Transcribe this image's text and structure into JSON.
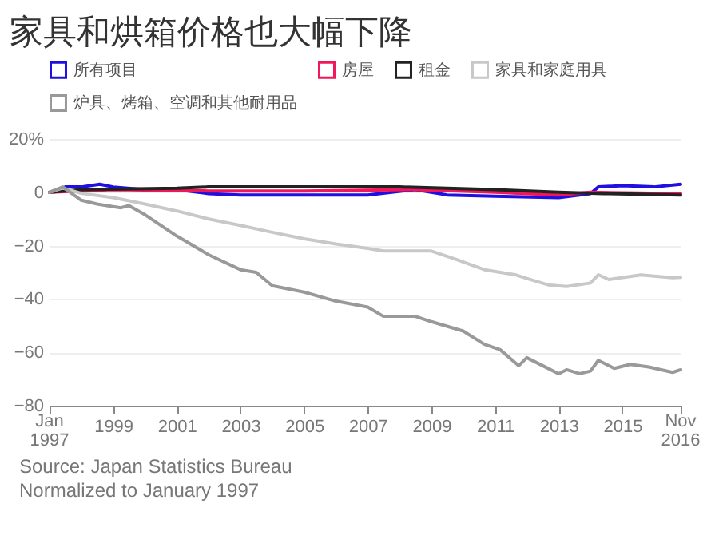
{
  "chart_data": {
    "type": "line",
    "title": "家具和烘箱价格也大幅下降",
    "annotations": [
      "Source: Japan Statistics Bureau",
      "Normalized to January 1997"
    ],
    "xlim": [
      "1997-01",
      "2016-11"
    ],
    "xticks": [
      {
        "value": "1997-01",
        "label": "Jan 1997"
      },
      "1999",
      "2001",
      "2003",
      "2005",
      "2007",
      "2009",
      "2011",
      "2013",
      "2015",
      {
        "value": "2016-11",
        "label": "Nov 2016"
      }
    ],
    "ylim": [
      -80,
      20
    ],
    "yticks": [
      {
        "value": 20,
        "label": "20%"
      },
      0,
      -20,
      -40,
      -60,
      -80
    ],
    "grid": "y",
    "legend": "top",
    "line_style": "solid",
    "marker": "none",
    "series": [
      {
        "name": "所有项目",
        "color": "#1f0fe0",
        "x": [
          "1997-01",
          "1997-07",
          "1998-01",
          "1998-08",
          "1999-01",
          "2000-01",
          "2001-01",
          "2002-01",
          "2003-01",
          "2005-01",
          "2007-01",
          "2008-07",
          "2009-07",
          "2011-01",
          "2013-01",
          "2014-01",
          "2014-04",
          "2015-01",
          "2016-01",
          "2016-11"
        ],
        "values": [
          0,
          2,
          2,
          3,
          2,
          1,
          1,
          -0.5,
          -1,
          -1,
          -1,
          1,
          -1,
          -1.5,
          -2,
          -0.5,
          2,
          2.5,
          2,
          3
        ]
      },
      {
        "name": "房屋",
        "color": "#f0185a",
        "x": [
          "1997-01",
          "1999-01",
          "2002-01",
          "2005-01",
          "2008-07",
          "2011-01",
          "2013-01",
          "2014-01",
          "2016-11"
        ],
        "values": [
          0,
          1,
          0.5,
          0.5,
          1,
          0,
          -1,
          0,
          -0.5
        ]
      },
      {
        "name": "租金",
        "color": "#222222",
        "x": [
          "1997-01",
          "1998-01",
          "2001-01",
          "2002-01",
          "2008-01",
          "2011-01",
          "2013-01",
          "2014-06",
          "2016-11"
        ],
        "values": [
          0,
          1,
          1.5,
          2,
          2,
          1,
          0,
          -0.5,
          -1
        ]
      },
      {
        "name": "家具和家庭用具",
        "color": "#c8c8c8",
        "x": [
          "1997-01",
          "1997-06",
          "1998-01",
          "1999-01",
          "2000-01",
          "2001-01",
          "2002-01",
          "2003-01",
          "2004-01",
          "2005-01",
          "2006-01",
          "2007-01",
          "2007-07",
          "2009-01",
          "2009-10",
          "2010-09",
          "2011-09",
          "2012-01",
          "2012-09",
          "2013-04",
          "2014-01",
          "2014-04",
          "2014-08",
          "2015-08",
          "2016-08",
          "2016-11"
        ],
        "values": [
          0,
          1.6,
          -0.4,
          -2,
          -4.4,
          -7,
          -10,
          -12.4,
          -15,
          -17.4,
          -19.4,
          -21,
          -22,
          -22,
          -25,
          -29,
          -31,
          -32.3,
          -34.7,
          -35.3,
          -34,
          -30.9,
          -32.7,
          -31,
          -32,
          -31.9
        ]
      },
      {
        "name": "炉具、烤箱、空调和其他耐用品",
        "color": "#999999",
        "x": [
          "1997-01",
          "1997-06",
          "1998-01",
          "1998-07",
          "1999-01",
          "1999-04",
          "1999-07",
          "2000-01",
          "2001-01",
          "2002-01",
          "2003-01",
          "2003-07",
          "2004-01",
          "2005-01",
          "2006-01",
          "2007-01",
          "2007-07",
          "2008-07",
          "2009-01",
          "2010-01",
          "2010-09",
          "2011-03",
          "2011-10",
          "2012-01",
          "2012-07",
          "2013-01",
          "2013-04",
          "2013-09",
          "2014-01",
          "2014-04",
          "2014-10",
          "2015-04",
          "2015-11",
          "2016-08",
          "2016-11"
        ],
        "values": [
          0,
          2,
          -3,
          -4.4,
          -5.4,
          -5.8,
          -5,
          -8.4,
          -16.4,
          -23.4,
          -29,
          -30,
          -35,
          -37.4,
          -40.8,
          -43,
          -46.5,
          -46.5,
          -48.5,
          -52,
          -57,
          -59,
          -65,
          -62,
          -65,
          -68,
          -66.5,
          -68,
          -67,
          -63,
          -66,
          -64.5,
          -65.5,
          -67.5,
          -66.5
        ]
      }
    ]
  }
}
